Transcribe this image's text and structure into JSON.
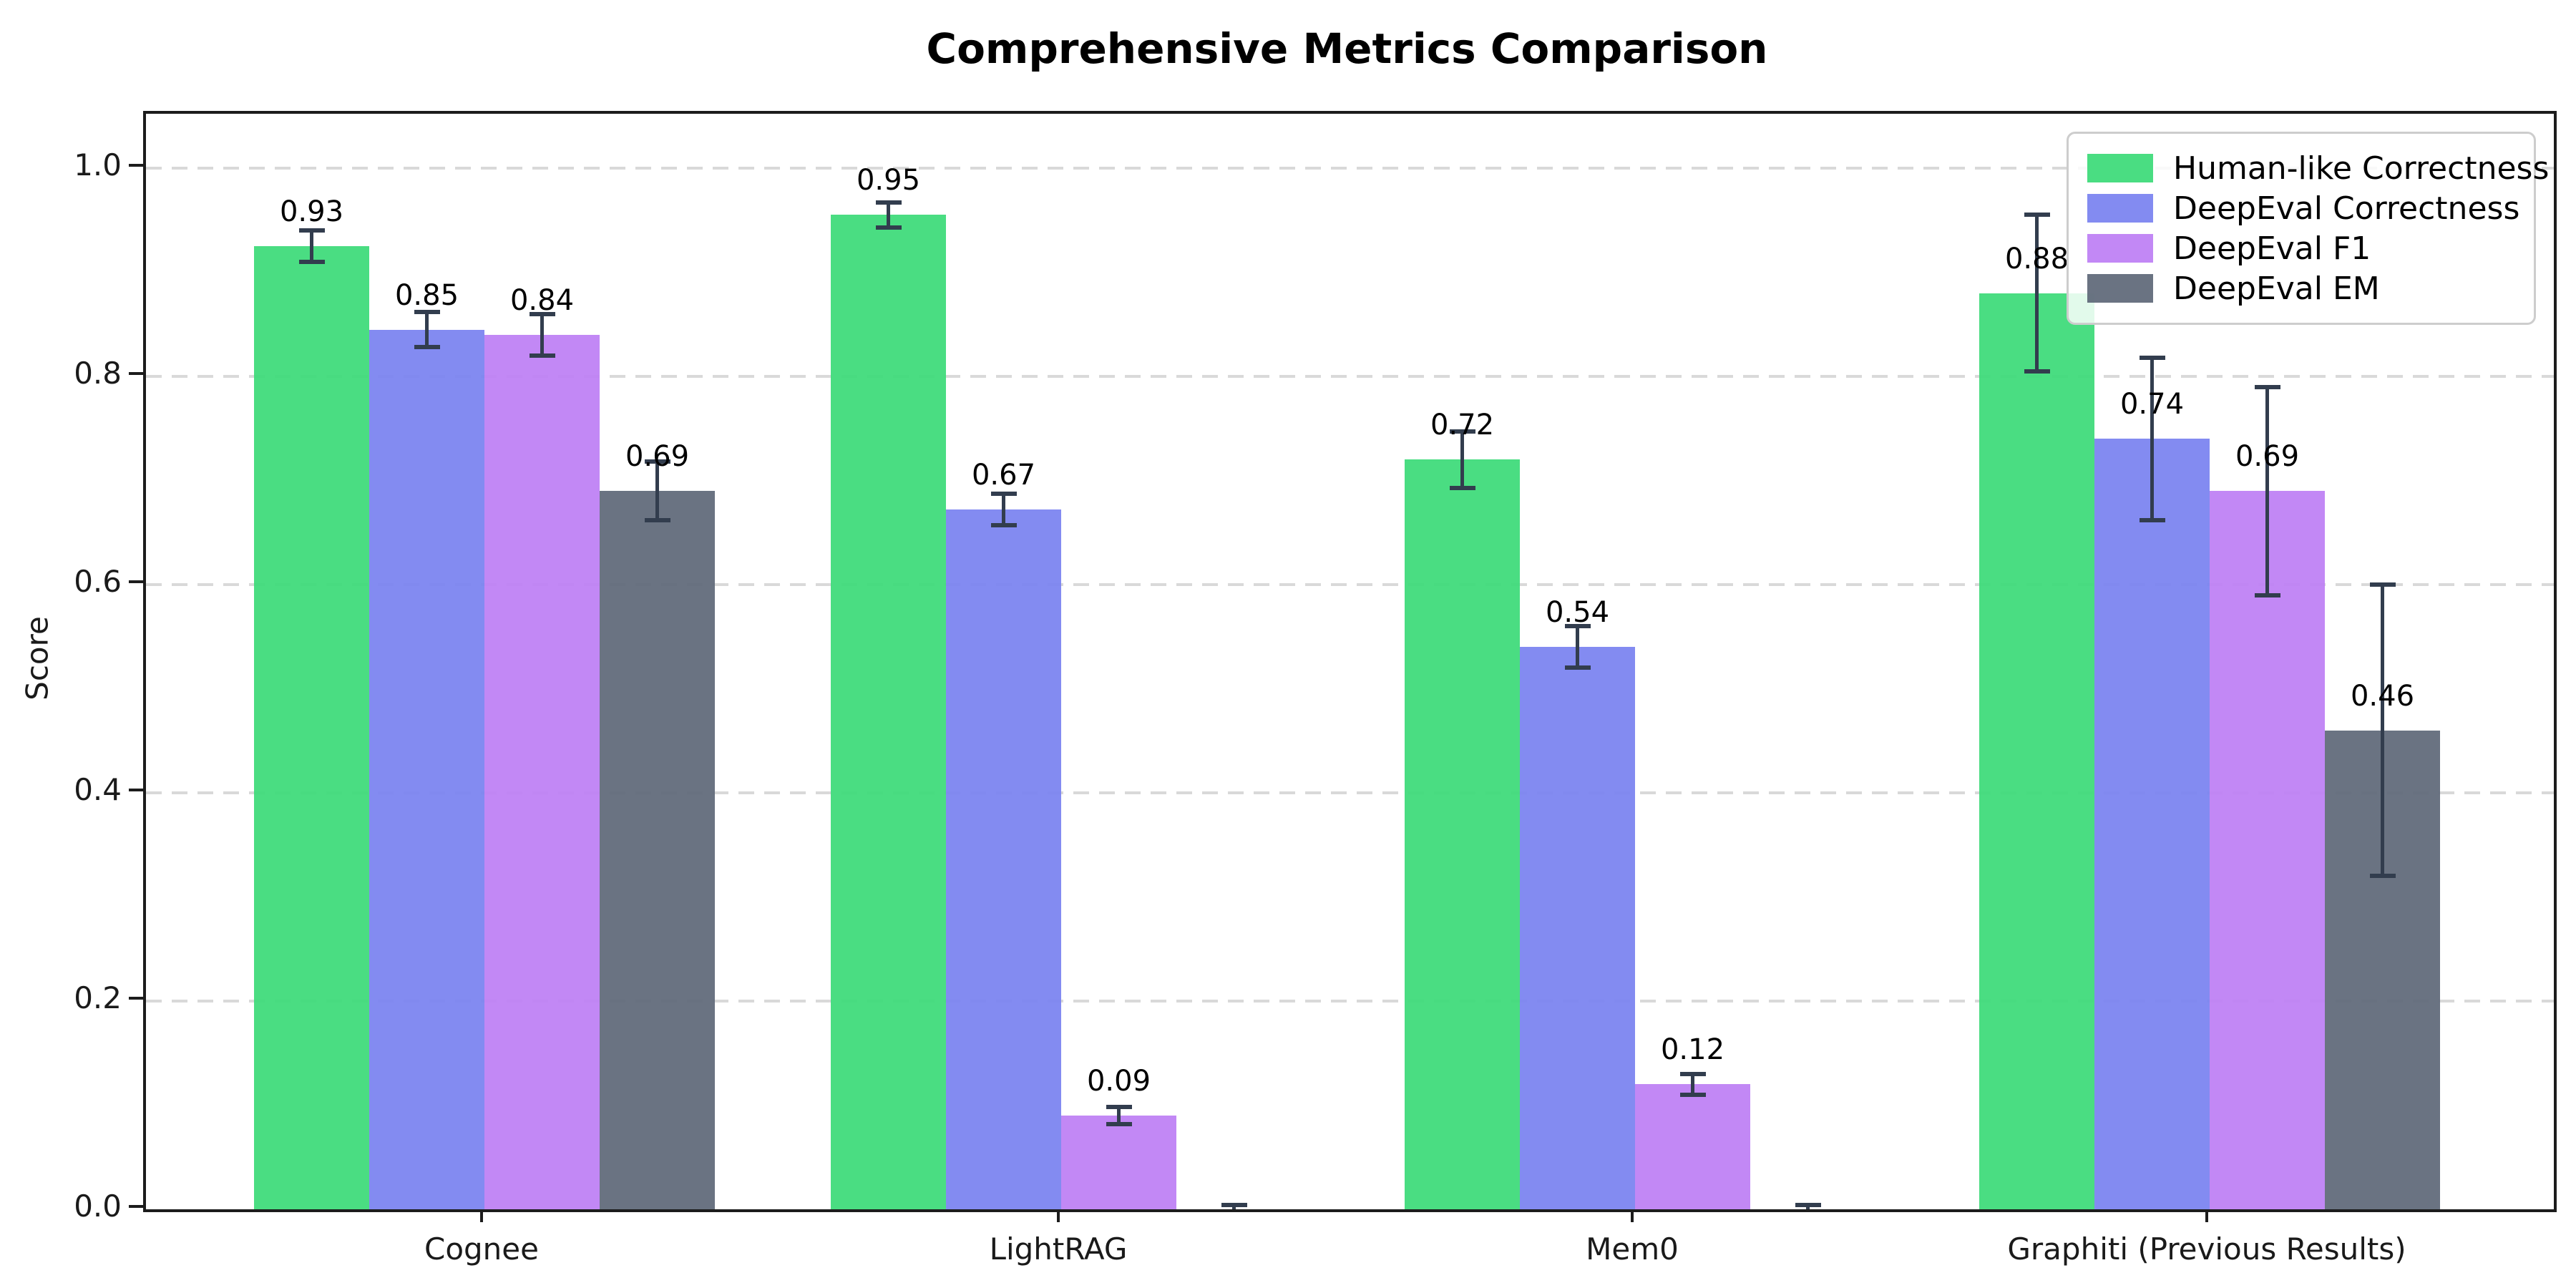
{
  "title": "Comprehensive Metrics Comparison",
  "chart_data": {
    "type": "bar",
    "title": "Comprehensive Metrics Comparison",
    "ylabel": "Score",
    "ylim": [
      0.0,
      1.05
    ],
    "yticks": [
      "0.0",
      "0.2",
      "0.4",
      "0.6",
      "0.8",
      "1.0"
    ],
    "grid": "horizontal-dashed",
    "legend_position": "upper-right",
    "gridline_color": "#d9d9d9",
    "error_bar_color": "#323d4e",
    "categories": [
      "Cognee",
      "LightRAG",
      "Mem0",
      "Graphiti (Previous Results)"
    ],
    "series": [
      {
        "name": "Human-like Correctness",
        "color": "#3cda78",
        "values": [
          0.925,
          0.955,
          0.72,
          0.88
        ],
        "errors": [
          0.015,
          0.012,
          0.027,
          0.075
        ],
        "labels": [
          "0.93",
          "0.95",
          "0.72",
          "0.88"
        ]
      },
      {
        "name": "DeepEval Correctness",
        "color": "#7a82f0",
        "values": [
          0.845,
          0.672,
          0.54,
          0.74
        ],
        "errors": [
          0.017,
          0.015,
          0.02,
          0.078
        ],
        "labels": [
          "0.85",
          "0.67",
          "0.54",
          "0.74"
        ]
      },
      {
        "name": "DeepEval F1",
        "color": "#bd7ff4",
        "values": [
          0.84,
          0.09,
          0.12,
          0.69
        ],
        "errors": [
          0.02,
          0.008,
          0.01,
          0.1
        ],
        "labels": [
          "0.84",
          "0.09",
          "0.12",
          "0.69"
        ]
      },
      {
        "name": "DeepEval EM",
        "color": "#5f6878",
        "values": [
          0.69,
          0.0,
          0.0,
          0.46
        ],
        "errors": [
          0.028,
          0.004,
          0.004,
          0.14
        ],
        "labels": [
          "0.69",
          "",
          "",
          "0.46"
        ]
      }
    ]
  }
}
